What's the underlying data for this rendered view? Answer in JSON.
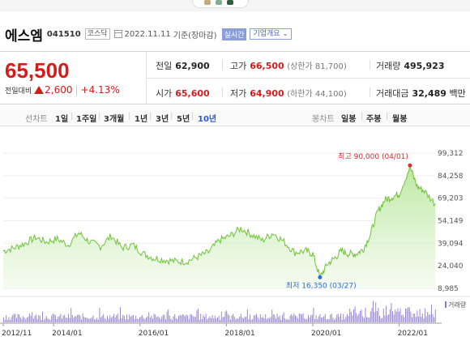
{
  "stock": {
    "name": "에스엠",
    "code": "041510",
    "market": "코스닥",
    "date": "2022.11.11",
    "basis": "기준(장마감)",
    "realtime_label": "실시간",
    "overview_label": "기업개요"
  },
  "price": {
    "current": "65,500",
    "change_label": "전일대비",
    "change": "2,600",
    "change_pct": "+4.13%"
  },
  "stats": {
    "prev_close_label": "전일",
    "prev_close": "62,900",
    "high_label": "고가",
    "high": "66,500",
    "upper_limit": "(상한가 81,700)",
    "volume_label": "거래량",
    "volume": "495,923",
    "open_label": "시가",
    "open": "65,600",
    "low_label": "저가",
    "low": "64,900",
    "lower_limit": "(하한가 44,100)",
    "trade_value_label": "거래대금",
    "trade_value": "32,489",
    "trade_value_unit": "백만"
  },
  "periods": {
    "line_label": "선차트",
    "line_items": [
      "1일",
      "1주일",
      "3개월",
      "1년",
      "3년",
      "5년",
      "10년"
    ],
    "active": "10년",
    "candle_label": "봉차트",
    "candle_items": [
      "일봉",
      "주봉",
      "월봉"
    ]
  },
  "chart_data": {
    "type": "area",
    "x_ticks": [
      "2012/11",
      "2014/01",
      "2016/01",
      "2018/01",
      "2020/01",
      "2022/01"
    ],
    "y_ticks": [
      "99,312",
      "84,258",
      "69,203",
      "54,149",
      "39,094",
      "24,040",
      "8,985"
    ],
    "ylim": [
      8985,
      99312
    ],
    "annotations": {
      "max_label": "최고 90,000 (04/01)",
      "min_label": "최저 16,350 (03/27)"
    },
    "volume_legend": "거래량",
    "series": [
      {
        "x": [
          "2012/11",
          "2013/02",
          "2013/05",
          "2013/08",
          "2013/11",
          "2014/02",
          "2014/05",
          "2014/08",
          "2014/11",
          "2015/02",
          "2015/05",
          "2015/08",
          "2015/11",
          "2016/02",
          "2016/05",
          "2016/08",
          "2016/11",
          "2017/02",
          "2017/05",
          "2017/08",
          "2017/11",
          "2018/02",
          "2018/05",
          "2018/08",
          "2018/11",
          "2019/02",
          "2019/05",
          "2019/08",
          "2019/11",
          "2020/01",
          "2020/03",
          "2020/05",
          "2020/07",
          "2020/09",
          "2020/11",
          "2021/01",
          "2021/03",
          "2021/05",
          "2021/07",
          "2021/09",
          "2021/11",
          "2022/01",
          "2022/04",
          "2022/06",
          "2022/08",
          "2022/11"
        ],
        "values": [
          34000,
          36000,
          39000,
          43000,
          40000,
          42000,
          38000,
          46000,
          40000,
          37000,
          44000,
          36000,
          38000,
          32000,
          29000,
          28000,
          27000,
          27000,
          30000,
          33000,
          41000,
          44000,
          49000,
          45000,
          41000,
          46000,
          40000,
          33000,
          34000,
          32000,
          16350,
          25000,
          29000,
          34000,
          32000,
          32000,
          35000,
          45000,
          60000,
          68000,
          70000,
          72000,
          90000,
          77000,
          74000,
          65500
        ]
      }
    ]
  }
}
